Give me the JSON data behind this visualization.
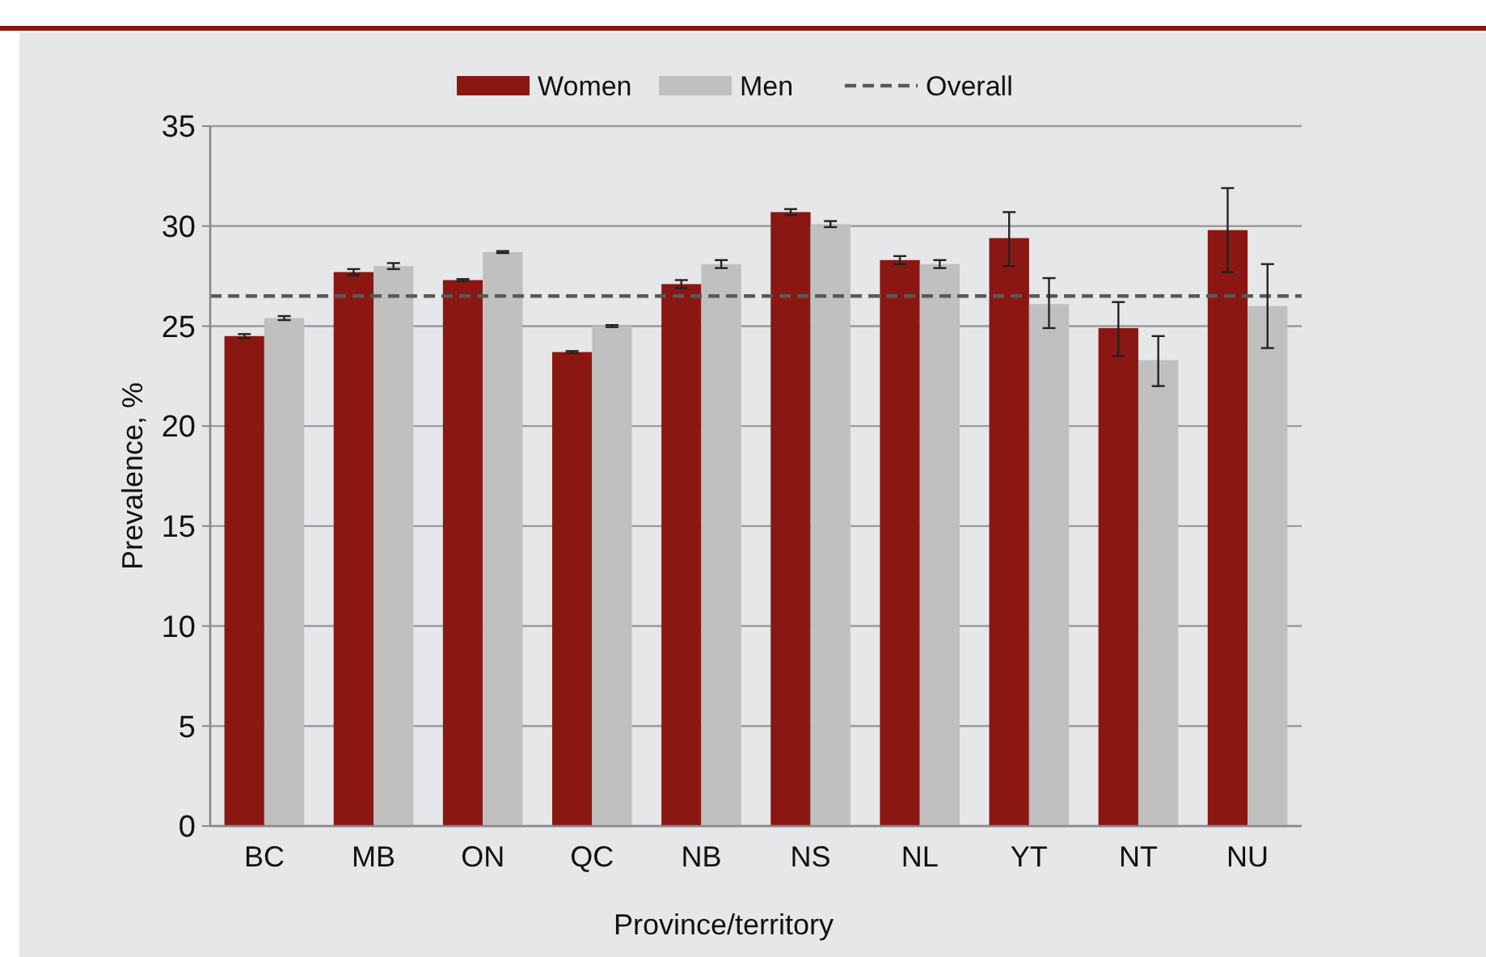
{
  "chart_data": {
    "type": "bar",
    "xlabel": "Province/territory",
    "ylabel": "Prevalence, %",
    "categories": [
      "BC",
      "MB",
      "ON",
      "QC",
      "NB",
      "NS",
      "NL",
      "YT",
      "NT",
      "NU"
    ],
    "series": [
      {
        "name": "Women",
        "color": "#8b1713",
        "values": [
          24.5,
          27.7,
          27.3,
          23.7,
          27.1,
          30.7,
          28.3,
          29.4,
          24.9,
          29.8
        ],
        "errors": [
          0.1,
          0.15,
          0.05,
          0.05,
          0.2,
          0.15,
          0.2,
          [
            28.0,
            30.7
          ],
          [
            23.5,
            26.2
          ],
          [
            27.7,
            31.9
          ]
        ]
      },
      {
        "name": "Men",
        "color": "#c0c0c0",
        "values": [
          25.4,
          28.0,
          28.7,
          25.0,
          28.1,
          30.1,
          28.1,
          26.1,
          23.3,
          26.0
        ],
        "errors": [
          0.1,
          0.15,
          0.05,
          0.05,
          0.2,
          0.15,
          0.2,
          [
            24.9,
            27.4
          ],
          [
            22.0,
            24.5
          ],
          [
            23.9,
            28.1
          ]
        ]
      }
    ],
    "ref_lines": [
      {
        "axis": "y",
        "value": 26.5,
        "label": "Overall",
        "color": "#595959",
        "line_style": "dashed"
      }
    ],
    "ylim": [
      0,
      35
    ],
    "yticks": [
      0,
      5,
      10,
      15,
      20,
      25,
      30,
      35
    ],
    "grid": "y",
    "legend": "top"
  }
}
